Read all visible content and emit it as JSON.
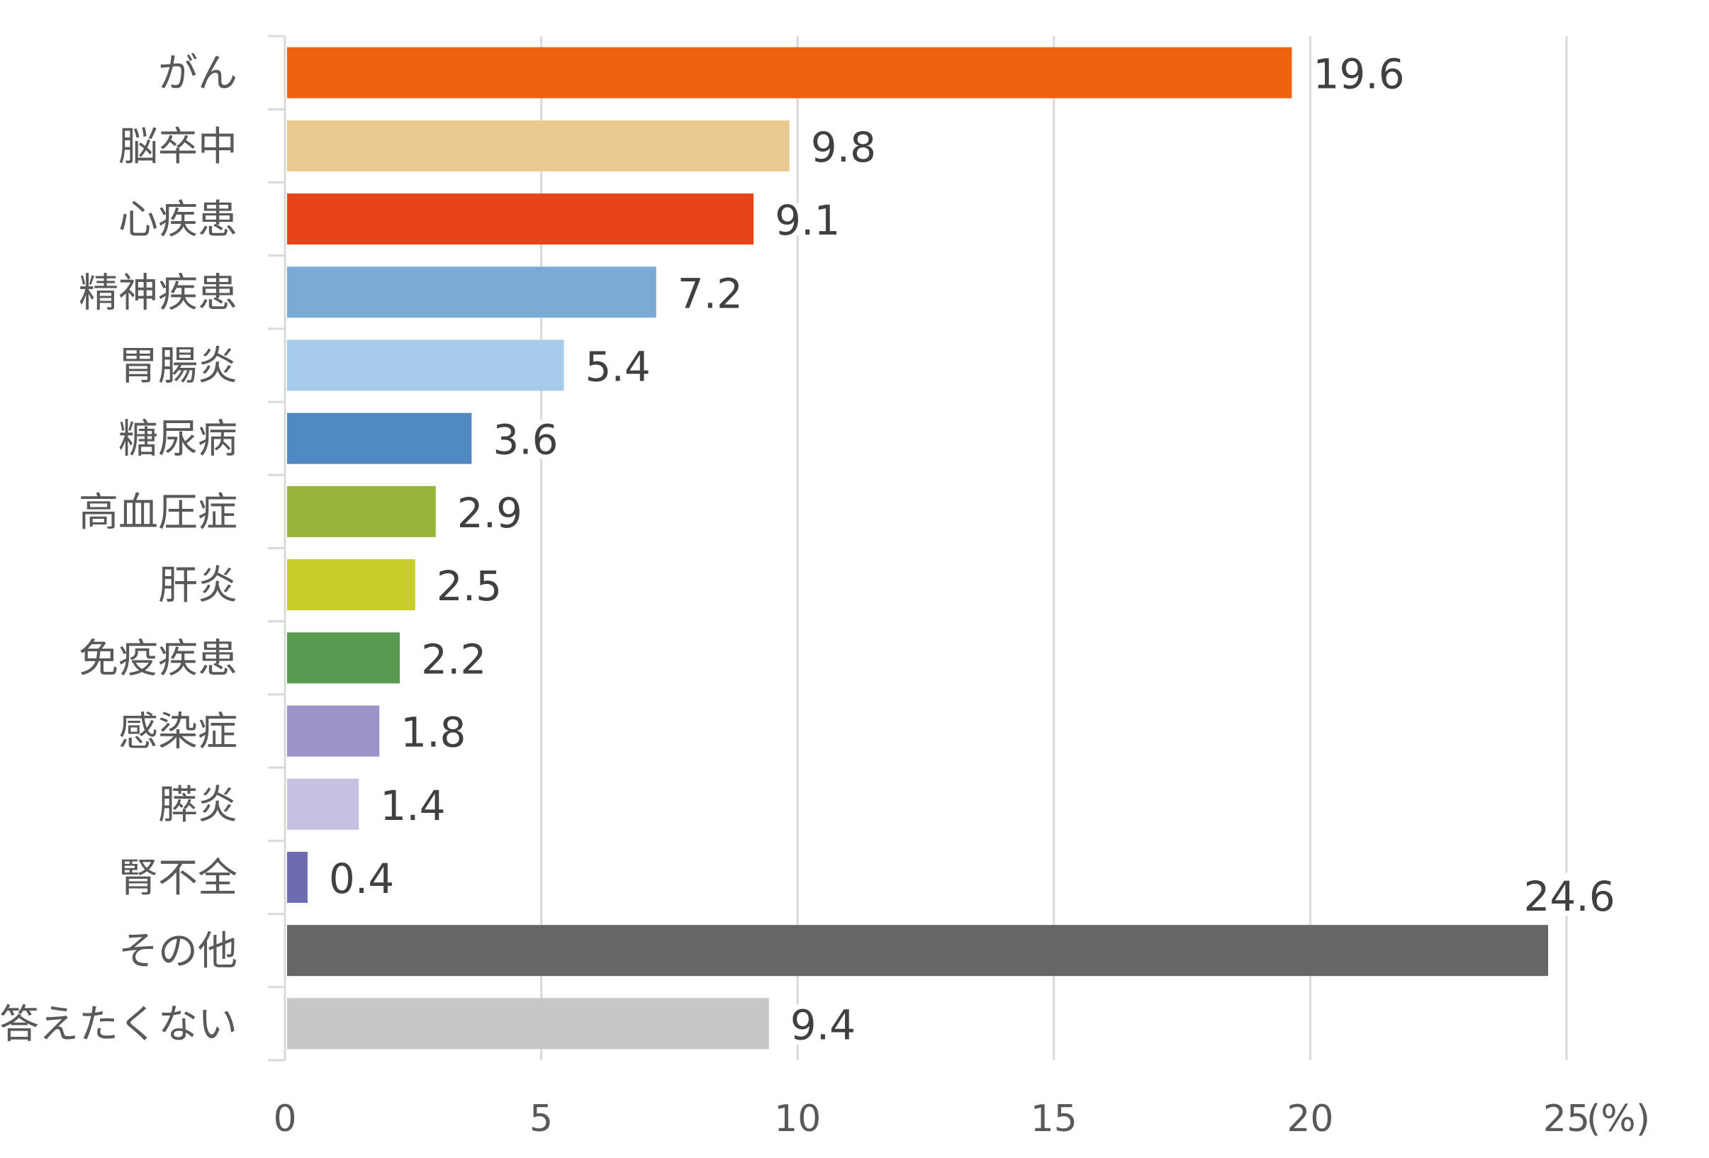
{
  "chart_data": {
    "type": "bar",
    "orientation": "horizontal",
    "categories": [
      "がん",
      "脳卒中",
      "心疾患",
      "精神疾患",
      "胃腸炎",
      "糖尿病",
      "高血圧症",
      "肝炎",
      "免疫疾患",
      "感染症",
      "膵炎",
      "腎不全",
      "その他",
      "答えたくない"
    ],
    "values": [
      19.6,
      9.8,
      9.1,
      7.2,
      5.4,
      3.6,
      2.9,
      2.5,
      2.2,
      1.8,
      1.4,
      0.4,
      24.6,
      9.4
    ],
    "value_labels": [
      "19.6",
      "9.8",
      "9.1",
      "7.2",
      "5.4",
      "3.6",
      "2.9",
      "2.5",
      "2.2",
      "1.8",
      "1.4",
      "0.4",
      "24.6",
      "9.4"
    ],
    "colors": [
      "#EB6310",
      "#E8C98E",
      "#E84417",
      "#7BA9D6",
      "#A6CBEA",
      "#5189C3",
      "#97B33A",
      "#C8CD2B",
      "#5A9952",
      "#9B92C8",
      "#C7C0E1",
      "#6C6CB0",
      "#666666",
      "#C8C7C5"
    ],
    "xlim": [
      0,
      25
    ],
    "xticks": [
      "0",
      "5",
      "10",
      "15",
      "20",
      "25"
    ],
    "xunit": "(%)",
    "grid": "vertical",
    "title": "",
    "xlabel": "",
    "ylabel": ""
  }
}
